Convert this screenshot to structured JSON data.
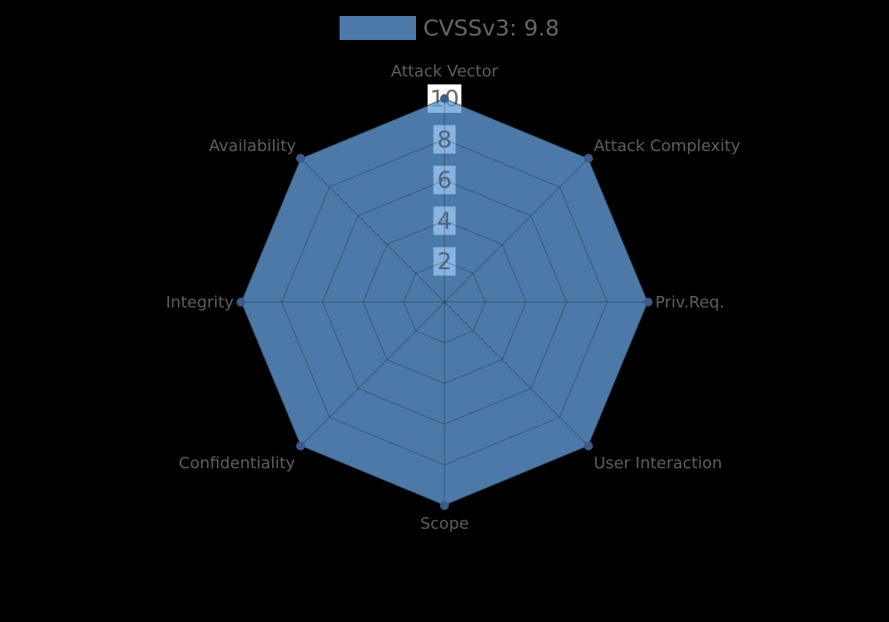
{
  "legend": {
    "label": "CVSSv3: 9.8"
  },
  "chart_data": {
    "type": "radar",
    "title": "",
    "categories": [
      "Attack Vector",
      "Attack Complexity",
      "Priv.Req.",
      "User Interaction",
      "Scope",
      "Confidentiality",
      "Integrity",
      "Availability"
    ],
    "series": [
      {
        "name": "CVSSv3: 9.8",
        "values": [
          10,
          10,
          10,
          10,
          10,
          10,
          10,
          10
        ]
      }
    ],
    "r_axis": {
      "min": 0,
      "max": 10,
      "ticks": [
        2,
        4,
        6,
        8,
        10
      ]
    },
    "grid": true,
    "legend_position": "top-center",
    "colors": {
      "series": "#4d7aa8",
      "marker": "#3b5c87",
      "axis_label": "#5e5e5e",
      "tick_label": "#51637c",
      "tick_label_outside": "#666666",
      "tick_backdrop": "#ffffff",
      "legend_text": "#666666",
      "background": "#000000"
    }
  }
}
